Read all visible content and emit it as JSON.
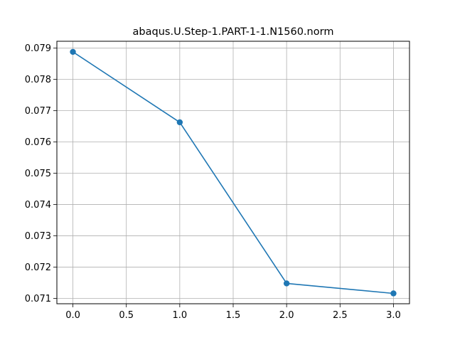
{
  "chart_data": {
    "type": "line",
    "title": "abaqus.U.Step-1.PART-1-1.N1560.norm",
    "xlabel": "",
    "ylabel": "",
    "x": [
      0,
      1,
      2,
      3
    ],
    "series": [
      {
        "values": [
          0.07888,
          0.07663,
          0.07148,
          0.07116
        ],
        "color": "#1f77b4",
        "marker": "circle"
      }
    ],
    "xlim": [
      -0.15,
      3.15
    ],
    "ylim": [
      0.07083,
      0.07922
    ],
    "xticks": [
      0,
      0.5,
      1,
      1.5,
      2,
      2.5,
      3
    ],
    "xtick_labels": [
      "0.0",
      "0.5",
      "1.0",
      "1.5",
      "2.0",
      "2.5",
      "3.0"
    ],
    "yticks": [
      0.071,
      0.072,
      0.073,
      0.074,
      0.075,
      0.076,
      0.077,
      0.078,
      0.079
    ],
    "ytick_labels": [
      "0.071",
      "0.072",
      "0.073",
      "0.074",
      "0.075",
      "0.076",
      "0.077",
      "0.078",
      "0.079"
    ],
    "grid": true,
    "legend": false
  }
}
